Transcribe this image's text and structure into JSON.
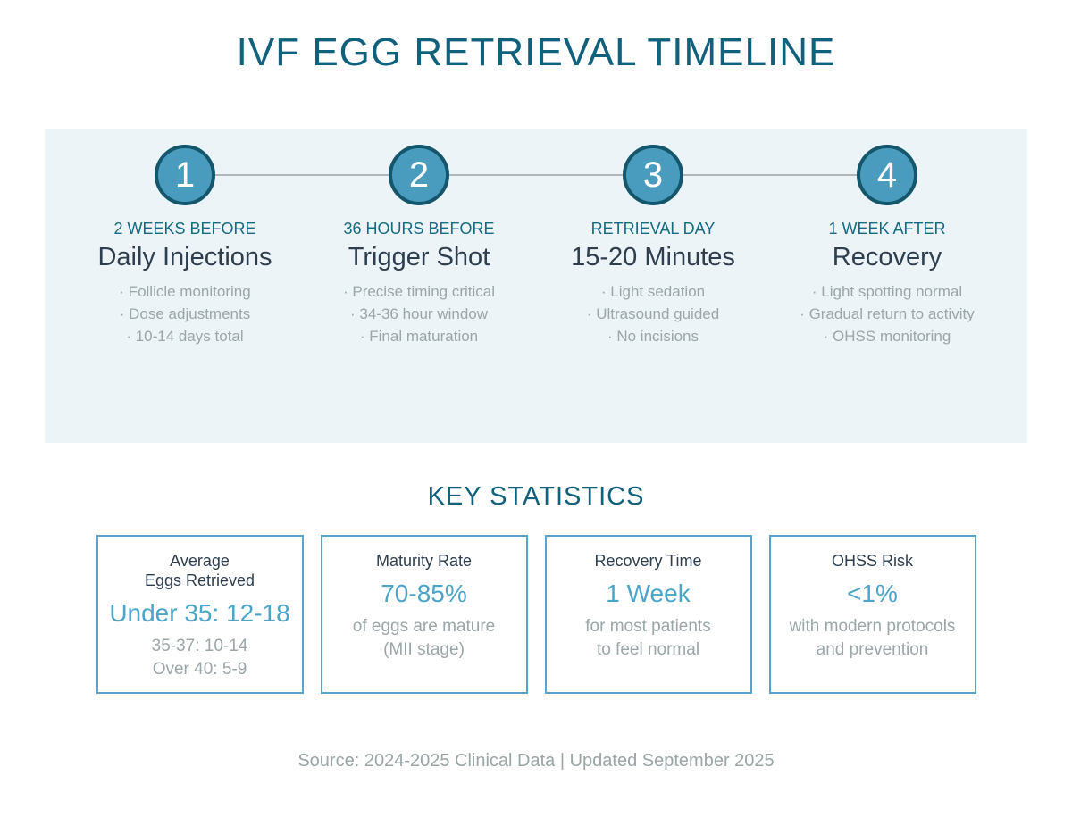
{
  "title": "IVF EGG RETRIEVAL TIMELINE",
  "timeline": {
    "steps": [
      {
        "number": "1",
        "label": "2 WEEKS BEFORE",
        "title": "Daily Injections",
        "bullets": [
          "· Follicle monitoring",
          "· Dose adjustments",
          "· 10-14 days total"
        ]
      },
      {
        "number": "2",
        "label": "36 HOURS BEFORE",
        "title": "Trigger Shot",
        "bullets": [
          "· Precise timing critical",
          "· 34-36 hour window",
          "· Final maturation"
        ]
      },
      {
        "number": "3",
        "label": "RETRIEVAL DAY",
        "title": "15-20 Minutes",
        "bullets": [
          "· Light sedation",
          "· Ultrasound guided",
          "· No incisions"
        ]
      },
      {
        "number": "4",
        "label": "1 WEEK AFTER",
        "title": "Recovery",
        "bullets": [
          "· Light spotting normal",
          "· Gradual return to activity",
          "· OHSS monitoring"
        ]
      }
    ]
  },
  "statistics": {
    "heading": "KEY STATISTICS",
    "cards": [
      {
        "label": "Average\nEggs Retrieved",
        "value": "Under 35: 12-18",
        "desc": "35-37: 10-14\nOver 40: 5-9"
      },
      {
        "label": "Maturity Rate",
        "value": "70-85%",
        "desc": "of eggs are mature\n(MII stage)"
      },
      {
        "label": "Recovery Time",
        "value": "1 Week",
        "desc": "for most patients\nto feel normal"
      },
      {
        "label": "OHSS Risk",
        "value": "<1%",
        "desc": "with modern protocols\nand prevention"
      }
    ]
  },
  "footer": {
    "source": "Source: 2024-2025 Clinical Data | Updated September 2025"
  },
  "colors": {
    "title_teal": "#10617c",
    "step_label_teal": "#166a84",
    "dark_text": "#2f3e4e",
    "muted_gray": "#9ba6a9",
    "circle_fill": "#4a9cbe",
    "circle_border": "#14566c",
    "connector_gray": "#b1b6b9",
    "panel_bg": "#ecf4f7",
    "stat_value_blue": "#4aa5c9",
    "card_border": "#5ba3c9"
  }
}
